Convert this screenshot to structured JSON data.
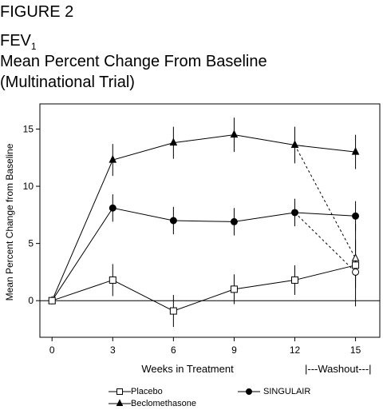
{
  "figure_label": "FIGURE 2",
  "chart_data": {
    "type": "line",
    "title_main": "FEV",
    "title_sub": "1",
    "subtitle_line1": "Mean Percent Change From Baseline",
    "subtitle_line2": "(Multinational Trial)",
    "xlabel": "Weeks in Treatment",
    "ylabel": "Mean Percent Change from Baseline",
    "washout_label": "|---Washout---|",
    "x": [
      0,
      3,
      6,
      9,
      12,
      15
    ],
    "xlim": [
      -0.6,
      16.2
    ],
    "ylim": [
      -3.2,
      17.2
    ],
    "xticks": [
      0,
      3,
      6,
      9,
      12,
      15
    ],
    "yticks": [
      0,
      5,
      10,
      15
    ],
    "series": [
      {
        "name": "Beclomethasone",
        "marker": "triangle-filled",
        "values": [
          0,
          12.3,
          13.8,
          14.5,
          13.6,
          13.0
        ],
        "error": [
          null,
          1.4,
          1.4,
          1.5,
          1.6,
          1.5
        ],
        "washout": {
          "from_x": 12,
          "from_y": 13.6,
          "to_x": 15,
          "to_y": 3.7,
          "marker": "triangle-open",
          "error": 1.6
        }
      },
      {
        "name": "SINGULAIR",
        "marker": "circle-filled",
        "values": [
          0,
          8.1,
          7.0,
          6.9,
          7.7,
          7.4
        ],
        "error": [
          null,
          1.2,
          1.2,
          1.2,
          1.2,
          1.3
        ],
        "washout": {
          "from_x": 12,
          "from_y": 7.7,
          "to_x": 15,
          "to_y": 2.5,
          "marker": "circle-open",
          "error": 1.4
        }
      },
      {
        "name": "Placebo",
        "marker": "square-open",
        "values": [
          0,
          1.8,
          -0.9,
          1.0,
          1.8,
          3.1
        ],
        "error": [
          null,
          1.4,
          1.4,
          1.3,
          1.3,
          3.6
        ]
      }
    ],
    "legend": [
      {
        "label": "Placebo",
        "marker": "square-open"
      },
      {
        "label": "Beclomethasone",
        "marker": "triangle-filled"
      },
      {
        "label": "SINGULAIR",
        "marker": "circle-filled"
      }
    ],
    "zero_line": true,
    "grid": false,
    "legend_position": "bottom"
  }
}
